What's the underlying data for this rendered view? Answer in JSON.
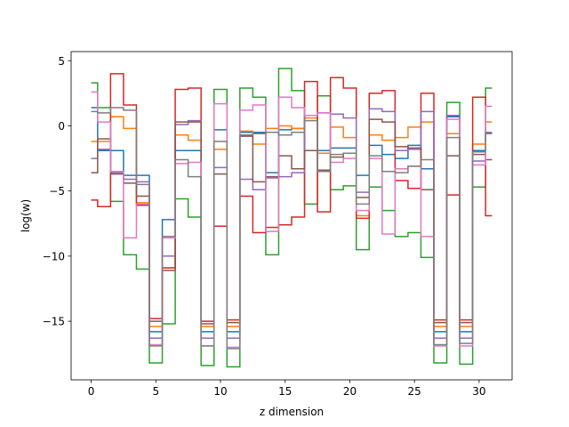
{
  "chart_data": {
    "type": "line",
    "drawstyle": "steps-mid",
    "title": "",
    "xlabel": "z dimension",
    "ylabel": "log(w)",
    "xlim": [
      -1.55,
      32.55
    ],
    "ylim": [
      -19.5,
      5.7
    ],
    "xticks": [
      0,
      5,
      10,
      15,
      20,
      25,
      30
    ],
    "yticks": [
      5,
      0,
      -5,
      -10,
      -15
    ],
    "ytick_labels": [
      "5",
      "0",
      "−5",
      "−10",
      "−15"
    ],
    "grid": false,
    "legend": "none",
    "x": [
      0,
      1,
      2,
      3,
      4,
      5,
      6,
      7,
      8,
      9,
      10,
      11,
      12,
      13,
      14,
      15,
      16,
      17,
      18,
      19,
      20,
      21,
      22,
      23,
      24,
      25,
      26,
      27,
      28,
      29,
      30,
      31
    ],
    "series": [
      {
        "color": "#1f77b4",
        "values": [
          1.4,
          -1.9,
          -1.9,
          -3.8,
          -3.8,
          -15.8,
          -7.2,
          -1.9,
          -1.9,
          -15.8,
          -0.3,
          -15.8,
          -0.5,
          -0.5,
          -3.6,
          -0.3,
          -0.2,
          -1.9,
          -1.9,
          -1.7,
          -1.7,
          -3.8,
          -1.5,
          -2.2,
          -2.5,
          -1.5,
          -3.3,
          -15.8,
          0.7,
          -15.8,
          -1.9,
          -0.5
        ]
      },
      {
        "color": "#ff7f0e",
        "values": [
          -1.2,
          -1.2,
          0.7,
          -0.2,
          -5.9,
          -15.4,
          -10.9,
          -0.7,
          -1.1,
          -15.4,
          -1.8,
          -15.4,
          -0.4,
          -1.4,
          -0.2,
          0.0,
          -0.2,
          0.6,
          -2.1,
          -0.1,
          -0.9,
          -6.9,
          -0.7,
          -1.1,
          -0.9,
          -0.1,
          0.3,
          -15.4,
          -0.6,
          -15.4,
          -1.4,
          0.3
        ]
      },
      {
        "color": "#2ca02c",
        "values": [
          3.3,
          1.4,
          -5.8,
          -9.9,
          -11.0,
          -18.2,
          -15.2,
          -5.6,
          -7.0,
          -18.4,
          2.8,
          -18.5,
          2.9,
          2.2,
          -9.9,
          4.4,
          2.7,
          -6.0,
          2.3,
          -4.9,
          -4.6,
          -9.5,
          -4.7,
          -6.5,
          -8.5,
          -8.2,
          -10.1,
          -18.2,
          1.8,
          -18.3,
          -4.7,
          2.9
        ]
      },
      {
        "color": "#d62728",
        "values": [
          -5.7,
          -6.2,
          4.0,
          1.6,
          -6.1,
          -14.8,
          -10.9,
          2.8,
          2.9,
          -15.0,
          -7.7,
          -14.9,
          -5.4,
          -8.2,
          -7.8,
          -7.6,
          -7.0,
          3.4,
          -6.6,
          3.7,
          2.9,
          -7.1,
          2.5,
          2.7,
          -4.2,
          -4.8,
          2.5,
          -14.9,
          -5.3,
          -14.9,
          2.2,
          -6.9
        ]
      },
      {
        "color": "#9467bd",
        "values": [
          -2.5,
          -1.8,
          -3.6,
          -4.1,
          -4.3,
          -16.3,
          -10.0,
          0.1,
          0.4,
          -16.3,
          -3.2,
          -16.3,
          -4.1,
          -4.9,
          -4.0,
          -3.9,
          -3.6,
          0.8,
          1.0,
          0.9,
          0.6,
          -5.1,
          1.3,
          1.1,
          -1.9,
          -1.8,
          1.1,
          -16.3,
          0.8,
          -16.3,
          -2.7,
          -0.6
        ]
      },
      {
        "color": "#8c564b",
        "values": [
          -3.6,
          -1.0,
          -3.7,
          -4.4,
          -5.4,
          -15.0,
          -11.1,
          0.3,
          0.3,
          -15.2,
          -3.7,
          -15.1,
          -0.8,
          -4.3,
          -3.9,
          -2.3,
          -3.3,
          -1.9,
          -3.4,
          -2.4,
          -2.1,
          -5.5,
          0.5,
          0.3,
          -1.6,
          -1.7,
          -4.9,
          -15.1,
          -2.3,
          -15.1,
          -2.2,
          -2.6
        ]
      },
      {
        "color": "#e377c2",
        "values": [
          2.6,
          0.3,
          -3.5,
          -8.6,
          -6.0,
          -16.8,
          -8.6,
          -2.9,
          -2.8,
          -16.9,
          1.7,
          -17.0,
          1.2,
          1.6,
          -8.1,
          2.2,
          1.4,
          0.8,
          1.0,
          -2.8,
          -2.5,
          -6.5,
          -2.5,
          -8.3,
          -3.3,
          -3.1,
          -8.5,
          -16.9,
          0.5,
          -16.9,
          -3.0,
          1.5
        ]
      },
      {
        "color": "#7f7f7f",
        "values": [
          1.1,
          1.0,
          1.4,
          1.2,
          -4.5,
          -16.9,
          -8.5,
          -2.6,
          -3.9,
          -16.9,
          -1.2,
          -17.1,
          -0.7,
          -0.6,
          -0.5,
          -0.7,
          -0.5,
          0.4,
          -3.5,
          -2.2,
          -2.1,
          -6.0,
          -2.3,
          -3.5,
          -3.6,
          -3.1,
          -2.6,
          -16.8,
          -0.9,
          -16.7,
          -2.0,
          -0.5
        ]
      }
    ]
  }
}
